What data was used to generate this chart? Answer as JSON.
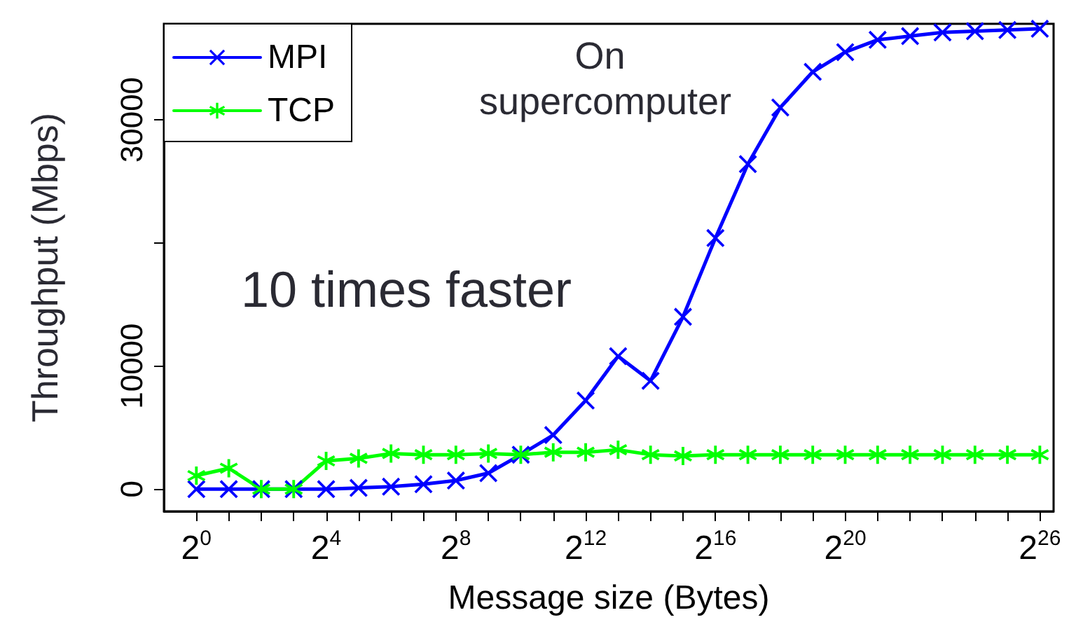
{
  "chart_data": {
    "type": "line",
    "xlabel": "Message size (Bytes)",
    "ylabel": "Throughput (Mbps)",
    "x": [
      1,
      2,
      4,
      8,
      16,
      32,
      64,
      128,
      256,
      512,
      1024,
      2048,
      4096,
      8192,
      16384,
      32768,
      65536,
      131072,
      262144,
      524288,
      1048576,
      2097152,
      4194304,
      8388608,
      16777216,
      33554432,
      67108864
    ],
    "series": [
      {
        "name": "MPI",
        "color": "#0000ff",
        "marker": "cross",
        "values": [
          0,
          0,
          0,
          0,
          0,
          100,
          200,
          400,
          700,
          1300,
          2800,
          4400,
          7200,
          10800,
          8800,
          14000,
          20400,
          26400,
          31000,
          33900,
          35500,
          36500,
          36800,
          37100,
          37200,
          37300,
          37400
        ]
      },
      {
        "name": "TCP",
        "color": "#00ff00",
        "marker": "star",
        "values": [
          1100,
          1700,
          0,
          0,
          2300,
          2500,
          2900,
          2800,
          2800,
          2900,
          2800,
          3000,
          3000,
          3200,
          2800,
          2700,
          2800,
          2800,
          2800,
          2800,
          2800,
          2800,
          2800,
          2800,
          2800,
          2800,
          2800
        ]
      }
    ],
    "log": "x",
    "xlim": [
      0.5,
      90000000
    ],
    "ylim": [
      -1800,
      37800
    ],
    "xticks": [
      {
        "value": 1,
        "label": "2$^{0}$"
      },
      {
        "value": 2,
        "label": null
      },
      {
        "value": 4,
        "label": null
      },
      {
        "value": 8,
        "label": null
      },
      {
        "value": 16,
        "label": "2$^{4}$"
      },
      {
        "value": 32,
        "label": null
      },
      {
        "value": 64,
        "label": null
      },
      {
        "value": 128,
        "label": null
      },
      {
        "value": 256,
        "label": "2$^{8}$"
      },
      {
        "value": 512,
        "label": null
      },
      {
        "value": 1024,
        "label": null
      },
      {
        "value": 2048,
        "label": null
      },
      {
        "value": 4096,
        "label": "2$^{12}$"
      },
      {
        "value": 8192,
        "label": null
      },
      {
        "value": 16384,
        "label": null
      },
      {
        "value": 32768,
        "label": null
      },
      {
        "value": 65536,
        "label": "2$^{16}$"
      },
      {
        "value": 131072,
        "label": null
      },
      {
        "value": 262144,
        "label": null
      },
      {
        "value": 524288,
        "label": null
      },
      {
        "value": 1048576,
        "label": "2$^{20}$"
      },
      {
        "value": 2097152,
        "label": null
      },
      {
        "value": 4194304,
        "label": null
      },
      {
        "value": 8388608,
        "label": null
      },
      {
        "value": 16777216,
        "label": null
      },
      {
        "value": 33554432,
        "label": null
      },
      {
        "value": 67108864,
        "label": "2$^{26}$"
      }
    ],
    "yticks": [
      0,
      10000,
      {
        "value": 20000,
        "label": null
      },
      30000
    ],
    "annotations": [
      "On supercomputer",
      "10 times faster"
    ],
    "legend": "top left",
    "grid": false,
    "line_style": "solid"
  }
}
